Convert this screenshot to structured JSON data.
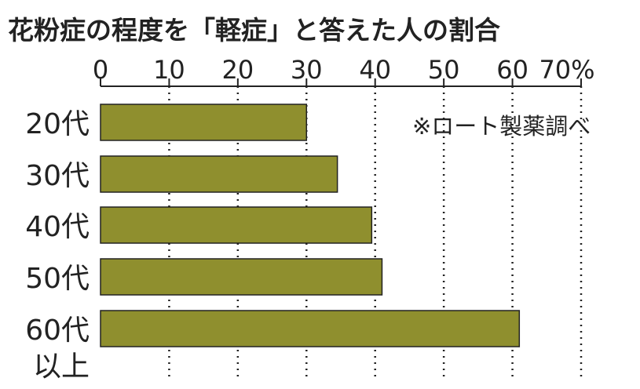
{
  "chart_data": {
    "type": "bar",
    "orientation": "horizontal",
    "title": "花粉症の程度を「軽症」と答えた人の割合",
    "source_note": "※ロート製薬調べ",
    "categories": [
      [
        "20代"
      ],
      [
        "30代"
      ],
      [
        "40代"
      ],
      [
        "50代"
      ],
      [
        "60代",
        "以上"
      ]
    ],
    "values": [
      30,
      34.5,
      39.5,
      41,
      61
    ],
    "xlim": [
      0,
      70
    ],
    "ticks": [
      "0",
      "10",
      "20",
      "30",
      "40",
      "50",
      "60",
      "70%"
    ],
    "tick_values": [
      0,
      10,
      20,
      30,
      40,
      50,
      60,
      70
    ],
    "grid": true,
    "colors": {
      "bar": "#8f8f2e",
      "bar_edge": "#222222",
      "axis": "#222222"
    }
  }
}
